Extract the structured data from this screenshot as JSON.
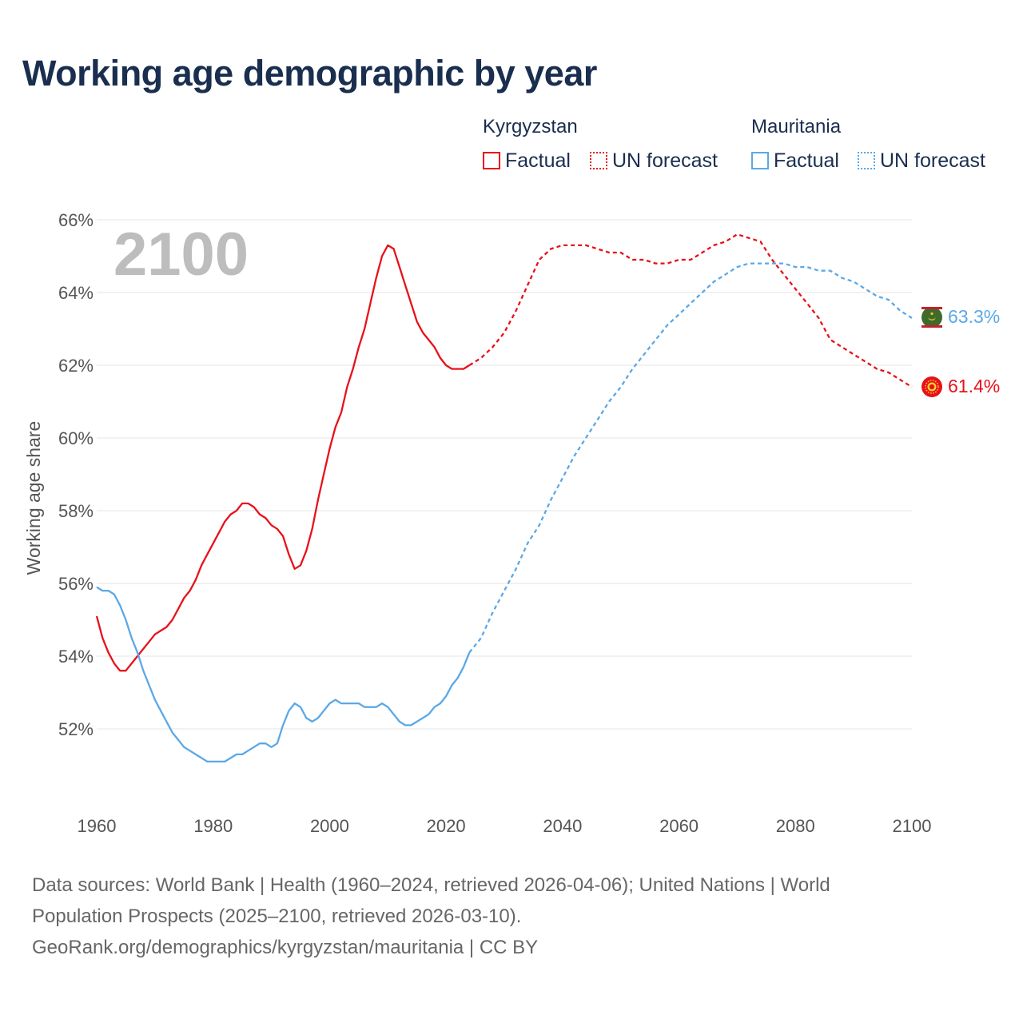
{
  "title": "Working age demographic by year",
  "legend": {
    "groups": [
      {
        "country": "Kyrgyzstan",
        "factual": "Factual",
        "forecast": "UN forecast",
        "color": "#e8111a"
      },
      {
        "country": "Mauritania",
        "factual": "Factual",
        "forecast": "UN forecast",
        "color": "#5ba8e6"
      }
    ]
  },
  "footer": {
    "line1": "Data sources: World Bank | Health (1960–2024, retrieved 2026-04-06); United Nations | World",
    "line2": "Population Prospects (2025–2100, retrieved 2026-03-10).",
    "line3": "GeoRank.org/demographics/kyrgyzstan/mauritania | CC BY"
  },
  "chart_data": {
    "type": "line",
    "year_label": "2100",
    "ylabel": "Working age share",
    "xlim": [
      1960,
      2100
    ],
    "ylim": [
      50,
      66
    ],
    "x_ticks": [
      "1960",
      "1980",
      "2000",
      "2020",
      "2040",
      "2060",
      "2080",
      "2100"
    ],
    "y_ticks": [
      "52%",
      "54%",
      "56%",
      "58%",
      "60%",
      "62%",
      "64%",
      "66%"
    ],
    "grid": true,
    "series": [
      {
        "name": "Kyrgyzstan",
        "color": "#e8111a",
        "end_label": "61.4%",
        "factual": [
          [
            1960,
            55.1
          ],
          [
            1961,
            54.5
          ],
          [
            1962,
            54.1
          ],
          [
            1963,
            53.8
          ],
          [
            1964,
            53.6
          ],
          [
            1965,
            53.6
          ],
          [
            1966,
            53.8
          ],
          [
            1967,
            54.0
          ],
          [
            1968,
            54.2
          ],
          [
            1969,
            54.4
          ],
          [
            1970,
            54.6
          ],
          [
            1971,
            54.7
          ],
          [
            1972,
            54.8
          ],
          [
            1973,
            55.0
          ],
          [
            1974,
            55.3
          ],
          [
            1975,
            55.6
          ],
          [
            1976,
            55.8
          ],
          [
            1977,
            56.1
          ],
          [
            1978,
            56.5
          ],
          [
            1979,
            56.8
          ],
          [
            1980,
            57.1
          ],
          [
            1981,
            57.4
          ],
          [
            1982,
            57.7
          ],
          [
            1983,
            57.9
          ],
          [
            1984,
            58.0
          ],
          [
            1985,
            58.2
          ],
          [
            1986,
            58.2
          ],
          [
            1987,
            58.1
          ],
          [
            1988,
            57.9
          ],
          [
            1989,
            57.8
          ],
          [
            1990,
            57.6
          ],
          [
            1991,
            57.5
          ],
          [
            1992,
            57.3
          ],
          [
            1993,
            56.8
          ],
          [
            1994,
            56.4
          ],
          [
            1995,
            56.5
          ],
          [
            1996,
            56.9
          ],
          [
            1997,
            57.5
          ],
          [
            1998,
            58.3
          ],
          [
            1999,
            59.0
          ],
          [
            2000,
            59.7
          ],
          [
            2001,
            60.3
          ],
          [
            2002,
            60.7
          ],
          [
            2003,
            61.4
          ],
          [
            2004,
            61.9
          ],
          [
            2005,
            62.5
          ],
          [
            2006,
            63.0
          ],
          [
            2007,
            63.7
          ],
          [
            2008,
            64.4
          ],
          [
            2009,
            65.0
          ],
          [
            2010,
            65.3
          ],
          [
            2011,
            65.2
          ],
          [
            2012,
            64.7
          ],
          [
            2013,
            64.2
          ],
          [
            2014,
            63.7
          ],
          [
            2015,
            63.2
          ],
          [
            2016,
            62.9
          ],
          [
            2017,
            62.7
          ],
          [
            2018,
            62.5
          ],
          [
            2019,
            62.2
          ],
          [
            2020,
            62.0
          ],
          [
            2021,
            61.9
          ],
          [
            2022,
            61.9
          ],
          [
            2023,
            61.9
          ],
          [
            2024,
            62.0
          ]
        ],
        "forecast": [
          [
            2024,
            62.0
          ],
          [
            2026,
            62.2
          ],
          [
            2028,
            62.5
          ],
          [
            2030,
            62.9
          ],
          [
            2032,
            63.5
          ],
          [
            2034,
            64.2
          ],
          [
            2036,
            64.9
          ],
          [
            2038,
            65.2
          ],
          [
            2040,
            65.3
          ],
          [
            2042,
            65.3
          ],
          [
            2044,
            65.3
          ],
          [
            2046,
            65.2
          ],
          [
            2048,
            65.1
          ],
          [
            2050,
            65.1
          ],
          [
            2052,
            64.9
          ],
          [
            2054,
            64.9
          ],
          [
            2056,
            64.8
          ],
          [
            2058,
            64.8
          ],
          [
            2060,
            64.9
          ],
          [
            2062,
            64.9
          ],
          [
            2064,
            65.1
          ],
          [
            2066,
            65.3
          ],
          [
            2068,
            65.4
          ],
          [
            2070,
            65.6
          ],
          [
            2072,
            65.5
          ],
          [
            2074,
            65.4
          ],
          [
            2076,
            64.9
          ],
          [
            2078,
            64.5
          ],
          [
            2080,
            64.1
          ],
          [
            2082,
            63.7
          ],
          [
            2084,
            63.3
          ],
          [
            2086,
            62.7
          ],
          [
            2088,
            62.5
          ],
          [
            2090,
            62.3
          ],
          [
            2092,
            62.1
          ],
          [
            2094,
            61.9
          ],
          [
            2096,
            61.8
          ],
          [
            2098,
            61.6
          ],
          [
            2100,
            61.4
          ]
        ]
      },
      {
        "name": "Mauritania",
        "color": "#5ba8e6",
        "end_label": "63.3%",
        "factual": [
          [
            1960,
            55.9
          ],
          [
            1961,
            55.8
          ],
          [
            1962,
            55.8
          ],
          [
            1963,
            55.7
          ],
          [
            1964,
            55.4
          ],
          [
            1965,
            55.0
          ],
          [
            1966,
            54.5
          ],
          [
            1967,
            54.1
          ],
          [
            1968,
            53.6
          ],
          [
            1969,
            53.2
          ],
          [
            1970,
            52.8
          ],
          [
            1971,
            52.5
          ],
          [
            1972,
            52.2
          ],
          [
            1973,
            51.9
          ],
          [
            1974,
            51.7
          ],
          [
            1975,
            51.5
          ],
          [
            1976,
            51.4
          ],
          [
            1977,
            51.3
          ],
          [
            1978,
            51.2
          ],
          [
            1979,
            51.1
          ],
          [
            1980,
            51.1
          ],
          [
            1981,
            51.1
          ],
          [
            1982,
            51.1
          ],
          [
            1983,
            51.2
          ],
          [
            1984,
            51.3
          ],
          [
            1985,
            51.3
          ],
          [
            1986,
            51.4
          ],
          [
            1987,
            51.5
          ],
          [
            1988,
            51.6
          ],
          [
            1989,
            51.6
          ],
          [
            1990,
            51.5
          ],
          [
            1991,
            51.6
          ],
          [
            1992,
            52.1
          ],
          [
            1993,
            52.5
          ],
          [
            1994,
            52.7
          ],
          [
            1995,
            52.6
          ],
          [
            1996,
            52.3
          ],
          [
            1997,
            52.2
          ],
          [
            1998,
            52.3
          ],
          [
            1999,
            52.5
          ],
          [
            2000,
            52.7
          ],
          [
            2001,
            52.8
          ],
          [
            2002,
            52.7
          ],
          [
            2003,
            52.7
          ],
          [
            2004,
            52.7
          ],
          [
            2005,
            52.7
          ],
          [
            2006,
            52.6
          ],
          [
            2007,
            52.6
          ],
          [
            2008,
            52.6
          ],
          [
            2009,
            52.7
          ],
          [
            2010,
            52.6
          ],
          [
            2011,
            52.4
          ],
          [
            2012,
            52.2
          ],
          [
            2013,
            52.1
          ],
          [
            2014,
            52.1
          ],
          [
            2015,
            52.2
          ],
          [
            2016,
            52.3
          ],
          [
            2017,
            52.4
          ],
          [
            2018,
            52.6
          ],
          [
            2019,
            52.7
          ],
          [
            2020,
            52.9
          ],
          [
            2021,
            53.2
          ],
          [
            2022,
            53.4
          ],
          [
            2023,
            53.7
          ],
          [
            2024,
            54.1
          ]
        ],
        "forecast": [
          [
            2024,
            54.1
          ],
          [
            2026,
            54.5
          ],
          [
            2028,
            55.2
          ],
          [
            2030,
            55.8
          ],
          [
            2032,
            56.4
          ],
          [
            2034,
            57.1
          ],
          [
            2036,
            57.6
          ],
          [
            2038,
            58.3
          ],
          [
            2040,
            58.9
          ],
          [
            2042,
            59.5
          ],
          [
            2044,
            60.0
          ],
          [
            2046,
            60.5
          ],
          [
            2048,
            61.0
          ],
          [
            2050,
            61.4
          ],
          [
            2052,
            61.9
          ],
          [
            2054,
            62.3
          ],
          [
            2056,
            62.7
          ],
          [
            2058,
            63.1
          ],
          [
            2060,
            63.4
          ],
          [
            2062,
            63.7
          ],
          [
            2064,
            64.0
          ],
          [
            2066,
            64.3
          ],
          [
            2068,
            64.5
          ],
          [
            2070,
            64.7
          ],
          [
            2072,
            64.8
          ],
          [
            2074,
            64.8
          ],
          [
            2076,
            64.8
          ],
          [
            2078,
            64.8
          ],
          [
            2080,
            64.7
          ],
          [
            2082,
            64.7
          ],
          [
            2084,
            64.6
          ],
          [
            2086,
            64.6
          ],
          [
            2088,
            64.4
          ],
          [
            2090,
            64.3
          ],
          [
            2092,
            64.1
          ],
          [
            2094,
            63.9
          ],
          [
            2096,
            63.8
          ],
          [
            2098,
            63.5
          ],
          [
            2100,
            63.3
          ]
        ]
      }
    ]
  }
}
